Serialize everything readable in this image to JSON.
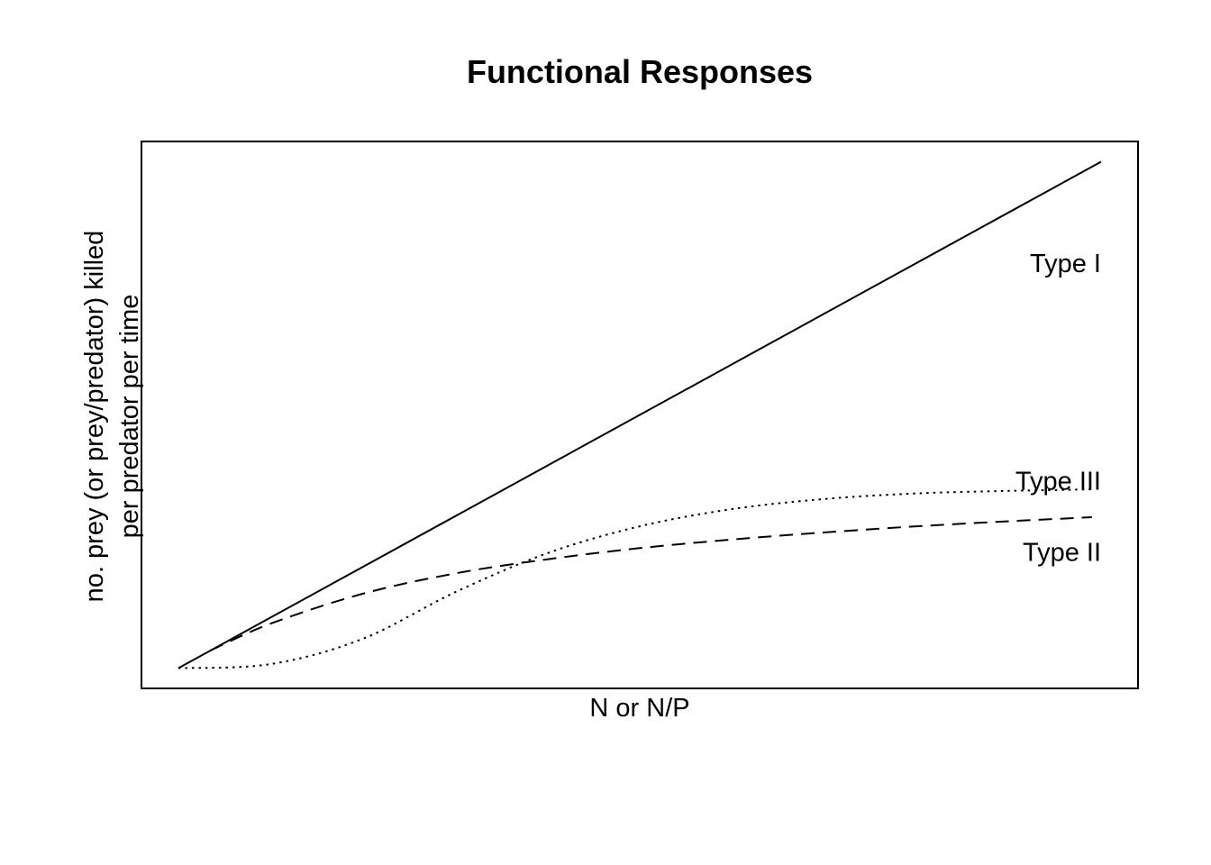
{
  "chart_data": {
    "type": "line",
    "title": "Functional Responses",
    "xlabel": "N or N/P",
    "ylabel_lines": [
      "no. prey (or prey/predator) killed",
      "per predator per time"
    ],
    "axes_ticks": false,
    "grid": false,
    "xlim": [
      -0.04,
      1.04
    ],
    "ylim": [
      -0.04,
      1.04
    ],
    "series": [
      {
        "name": "Type I",
        "line_style": "solid",
        "x": [
          0,
          1
        ],
        "y": [
          0,
          1
        ],
        "label_x": 1.0,
        "label_y": 0.8
      },
      {
        "name": "Type II",
        "line_style": "dashed",
        "x": [
          0.035,
          0.1,
          0.2,
          0.3,
          0.4,
          0.5,
          0.6,
          0.7,
          0.8,
          0.9,
          0.99
        ],
        "y": [
          0.035,
          0.088,
          0.147,
          0.187,
          0.215,
          0.237,
          0.254,
          0.268,
          0.28,
          0.29,
          0.298
        ],
        "label_x": 1.0,
        "label_y": 0.23
      },
      {
        "name": "Type III",
        "line_style": "dotted",
        "x": [
          0,
          0.1,
          0.2,
          0.3,
          0.4,
          0.5,
          0.6,
          0.7,
          0.8,
          0.9,
          0.99
        ],
        "y": [
          0,
          0.008,
          0.058,
          0.15,
          0.227,
          0.28,
          0.314,
          0.334,
          0.345,
          0.35,
          0.353
        ],
        "label_x": 1.0,
        "label_y": 0.37
      }
    ]
  }
}
